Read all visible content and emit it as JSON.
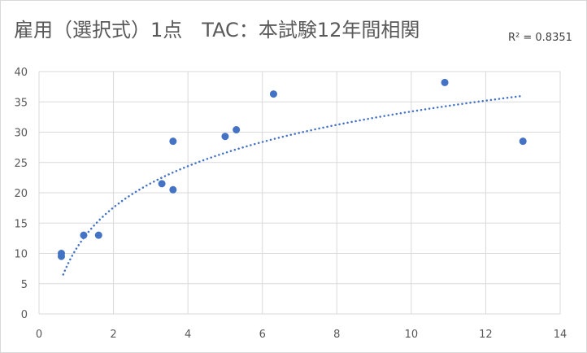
{
  "chart_data": {
    "type": "scatter",
    "title": "雇用（選択式）1点　TAC：本試験12年間相関",
    "r_squared_label": "R² = 0.8351",
    "xlabel": "",
    "ylabel": "",
    "xlim": [
      0,
      14
    ],
    "ylim": [
      0,
      40
    ],
    "x_ticks": [
      0,
      2,
      4,
      6,
      8,
      10,
      12,
      14
    ],
    "y_ticks": [
      0,
      5,
      10,
      15,
      20,
      25,
      30,
      35,
      40
    ],
    "grid": true,
    "legend": "none",
    "points": [
      {
        "x": 0.6,
        "y": 10.0
      },
      {
        "x": 0.6,
        "y": 9.5
      },
      {
        "x": 1.2,
        "y": 13.0
      },
      {
        "x": 1.6,
        "y": 13.0
      },
      {
        "x": 3.3,
        "y": 21.5
      },
      {
        "x": 3.6,
        "y": 20.5
      },
      {
        "x": 3.6,
        "y": 28.5
      },
      {
        "x": 5.0,
        "y": 29.3
      },
      {
        "x": 5.3,
        "y": 30.4
      },
      {
        "x": 6.3,
        "y": 36.3
      },
      {
        "x": 10.9,
        "y": 38.2
      },
      {
        "x": 13.0,
        "y": 28.5
      }
    ],
    "trendline": {
      "type": "logarithmic",
      "a": 9.84,
      "b": 10.75,
      "x_start": 0.65,
      "x_end": 12.95
    },
    "colors": {
      "marker": "#4472c4",
      "trendline": "#4472c4",
      "grid": "#d9d9d9"
    }
  }
}
